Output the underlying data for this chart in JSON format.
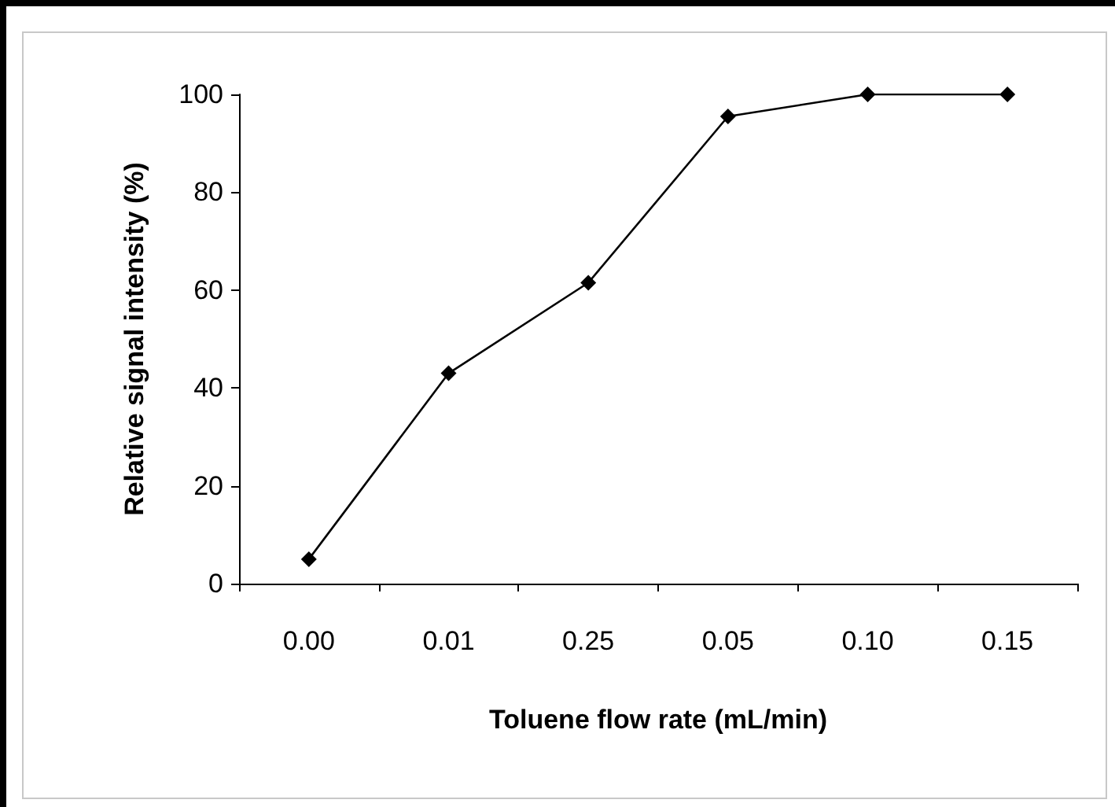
{
  "chart_data": {
    "type": "line",
    "xlabel": "Toluene flow rate (mL/min)",
    "ylabel": "Relative signal intensity (%)",
    "categories": [
      "0.00",
      "0.01",
      "0.25",
      "0.05",
      "0.10",
      "0.15"
    ],
    "series": [
      {
        "color": "#000000",
        "values": [
          5,
          43,
          61.5,
          95.5,
          100,
          100
        ]
      }
    ],
    "ylim": [
      0,
      100
    ],
    "yticks": [
      0,
      20,
      40,
      60,
      80,
      100
    ],
    "grid": false,
    "marker": "diamond",
    "line_style": "solid"
  }
}
